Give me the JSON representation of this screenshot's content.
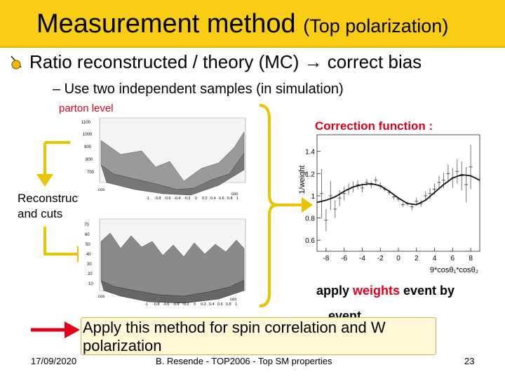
{
  "slide": {
    "title_main": "Measurement method",
    "title_sub": "(Top polarization)",
    "bullet1": "Ratio reconstructed / theory (MC) → correct bias",
    "bullet2": "– Use two independent samples (in simulation)",
    "parton_level": "parton level",
    "reconstruction": "Reconstruction",
    "and_cuts": "and cuts",
    "correction_function": "Correction function :",
    "apply_prefix": "apply ",
    "apply_weights": "weights",
    "apply_suffix": " event by",
    "event_word": "event",
    "callout": "Apply this method for spin correlation and W polarization",
    "footer_date": "17/09/2020",
    "footer_center": "B. Resende - TOP2006 - Top SM properties",
    "page_number": "23"
  },
  "surface_top": {
    "z_ticks": [
      "1100",
      "1000",
      "900",
      "800",
      "700"
    ],
    "x_ticks": [
      "-1",
      "-0.8",
      "-0.6",
      "-0.4",
      "-0.2",
      "0",
      "0.2",
      "0.4",
      "0.6",
      "0.8",
      "1"
    ],
    "x_label": "cos",
    "y_label": "cos"
  },
  "surface_bottom": {
    "z_ticks": [
      "70",
      "60",
      "50",
      "40",
      "30",
      "20",
      "10"
    ],
    "x_ticks": [
      "-1",
      "-0.8",
      "-0.6",
      "-0.4",
      "-0.2",
      "0",
      "0.2",
      "0.4",
      "0.6",
      "0.8",
      "1"
    ],
    "x_label": "cos",
    "y_label": "cos"
  },
  "chart_data": {
    "type": "scatter",
    "title": "",
    "xlabel": "9*cosθ₁*cosθ₂",
    "ylabel": "1/weight",
    "xlim": [
      -9,
      9
    ],
    "ylim": [
      0.5,
      1.55
    ],
    "x_ticks": [
      -8,
      -6,
      -4,
      -2,
      0,
      2,
      4,
      6,
      8
    ],
    "y_ticks": [
      0.6,
      0.8,
      1,
      1.2,
      1.4
    ],
    "points": [
      {
        "x": -8.5,
        "y": 1.02,
        "err": 0.22
      },
      {
        "x": -8.0,
        "y": 0.78,
        "err": 0.1
      },
      {
        "x": -7.5,
        "y": 1.0,
        "err": 0.13
      },
      {
        "x": -7.0,
        "y": 0.88,
        "err": 0.08
      },
      {
        "x": -6.5,
        "y": 0.98,
        "err": 0.07
      },
      {
        "x": -6.0,
        "y": 1.02,
        "err": 0.06
      },
      {
        "x": -5.5,
        "y": 1.06,
        "err": 0.05
      },
      {
        "x": -5.0,
        "y": 1.08,
        "err": 0.05
      },
      {
        "x": -4.5,
        "y": 1.1,
        "err": 0.04
      },
      {
        "x": -4.0,
        "y": 1.07,
        "err": 0.04
      },
      {
        "x": -3.5,
        "y": 1.12,
        "err": 0.03
      },
      {
        "x": -3.0,
        "y": 1.1,
        "err": 0.03
      },
      {
        "x": -2.5,
        "y": 1.14,
        "err": 0.03
      },
      {
        "x": -2.0,
        "y": 1.09,
        "err": 0.03
      },
      {
        "x": -1.5,
        "y": 1.06,
        "err": 0.02
      },
      {
        "x": -1.0,
        "y": 1.03,
        "err": 0.02
      },
      {
        "x": -0.5,
        "y": 0.99,
        "err": 0.02
      },
      {
        "x": 0.0,
        "y": 0.97,
        "err": 0.02
      },
      {
        "x": 0.5,
        "y": 0.92,
        "err": 0.02
      },
      {
        "x": 1.0,
        "y": 0.93,
        "err": 0.02
      },
      {
        "x": 1.5,
        "y": 0.9,
        "err": 0.03
      },
      {
        "x": 2.0,
        "y": 0.95,
        "err": 0.03
      },
      {
        "x": 2.5,
        "y": 0.93,
        "err": 0.03
      },
      {
        "x": 3.0,
        "y": 1.0,
        "err": 0.04
      },
      {
        "x": 3.5,
        "y": 1.02,
        "err": 0.05
      },
      {
        "x": 4.0,
        "y": 1.06,
        "err": 0.05
      },
      {
        "x": 4.5,
        "y": 1.12,
        "err": 0.06
      },
      {
        "x": 5.0,
        "y": 1.14,
        "err": 0.07
      },
      {
        "x": 5.5,
        "y": 1.2,
        "err": 0.08
      },
      {
        "x": 6.0,
        "y": 1.16,
        "err": 0.09
      },
      {
        "x": 6.5,
        "y": 1.22,
        "err": 0.11
      },
      {
        "x": 7.0,
        "y": 1.18,
        "err": 0.13
      },
      {
        "x": 7.5,
        "y": 1.1,
        "err": 0.16
      },
      {
        "x": 8.0,
        "y": 1.26,
        "err": 0.2
      }
    ],
    "fit": {
      "x": [
        -9,
        -8,
        -7,
        -6,
        -5,
        -4,
        -3,
        -2,
        -1,
        0,
        1,
        2,
        3,
        4,
        5,
        6,
        7,
        8,
        9
      ],
      "y": [
        0.94,
        0.96,
        0.99,
        1.04,
        1.08,
        1.1,
        1.11,
        1.09,
        1.04,
        0.98,
        0.93,
        0.92,
        0.96,
        1.03,
        1.1,
        1.16,
        1.19,
        1.18,
        1.14
      ]
    }
  }
}
